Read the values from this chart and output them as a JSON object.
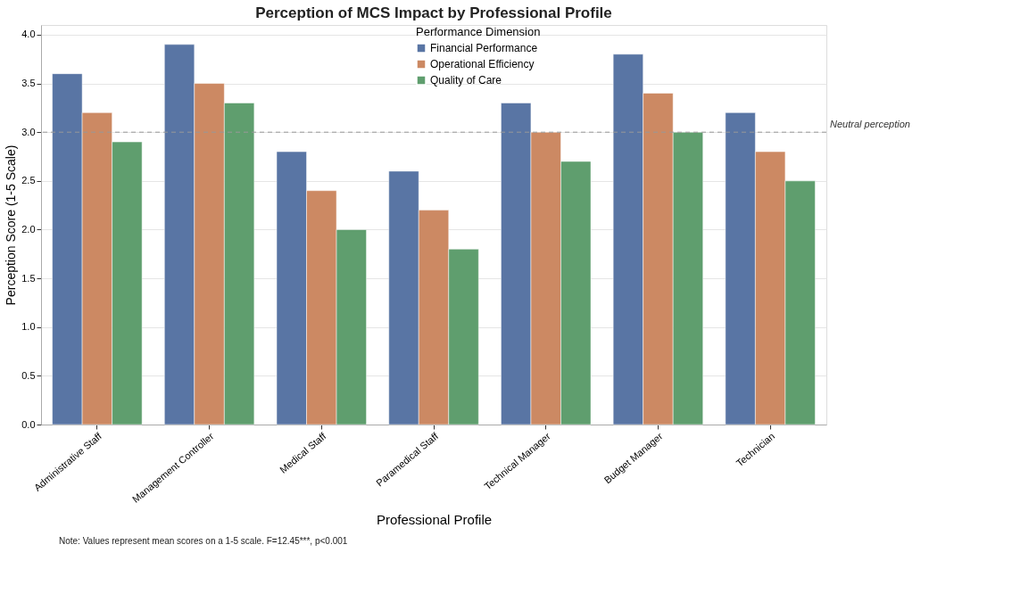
{
  "chart_data": {
    "type": "bar",
    "title": "Perception of MCS Impact by Professional Profile",
    "xlabel": "Professional Profile",
    "ylabel": "Perception Score (1-5 Scale)",
    "legend_title": "Performance Dimension",
    "categories": [
      "Administrative Staff",
      "Management Controller",
      "Medical Staff",
      "Paramedical Staff",
      "Technical Manager",
      "Budget Manager",
      "Technician"
    ],
    "series": [
      {
        "name": "Financial Performance",
        "color": "#5975a4",
        "values": [
          3.6,
          3.9,
          2.8,
          2.6,
          3.3,
          3.8,
          3.2
        ]
      },
      {
        "name": "Operational Efficiency",
        "color": "#cc8963",
        "values": [
          3.2,
          3.5,
          2.4,
          2.2,
          3.0,
          3.4,
          2.8
        ]
      },
      {
        "name": "Quality of Care",
        "color": "#5f9e6e",
        "values": [
          2.9,
          3.3,
          2.0,
          1.8,
          2.7,
          3.0,
          2.5
        ]
      }
    ],
    "ylim": [
      0,
      4.1
    ],
    "yticks": [
      {
        "value": 0,
        "label": "0.0"
      },
      {
        "value": 0.5,
        "label": "0.5"
      },
      {
        "value": 1,
        "label": "1.0"
      },
      {
        "value": 1.5,
        "label": "1.5"
      },
      {
        "value": 2,
        "label": "2.0"
      },
      {
        "value": 2.5,
        "label": "2.5"
      },
      {
        "value": 3,
        "label": "3.0"
      },
      {
        "value": 3.5,
        "label": "3.5"
      },
      {
        "value": 4,
        "label": "4.0"
      }
    ],
    "ref_lines": [
      {
        "axis": "y",
        "value": 3,
        "label": "Neutral perception",
        "color": "#999999",
        "line_style": "dashed"
      }
    ],
    "annotations": [
      "Note: Values represent mean scores on a 1-5 scale. F=12.45***, p<0.001"
    ],
    "grid": "y",
    "legend": "top"
  }
}
